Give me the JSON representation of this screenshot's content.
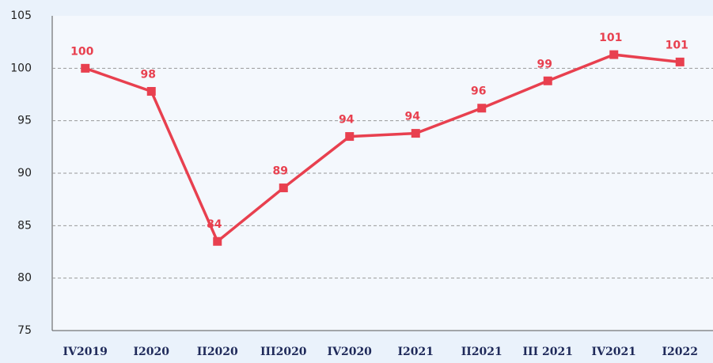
{
  "chart_data": {
    "type": "line",
    "categories": [
      "IV2019",
      "I2020",
      "II2020",
      "III2020",
      "IV2020",
      "I2021",
      "II2021",
      "III 2021",
      "IV2021",
      "I2022"
    ],
    "values": [
      100,
      97.8,
      83.5,
      88.6,
      93.5,
      93.8,
      96.2,
      98.8,
      101.3,
      100.6
    ],
    "value_labels": [
      "100",
      "98",
      "84",
      "89",
      "94",
      "94",
      "96",
      "99",
      "101",
      "101"
    ],
    "color": "#e8404f",
    "ylim": [
      75,
      105
    ],
    "yticks": [
      75,
      80,
      85,
      90,
      95,
      100,
      105
    ],
    "grid": true
  }
}
